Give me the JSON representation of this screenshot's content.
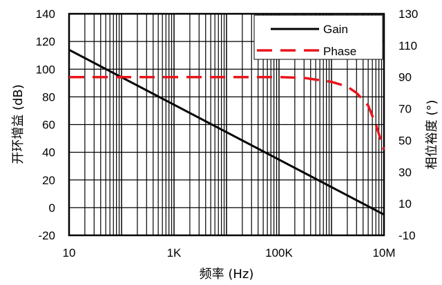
{
  "chart_data": {
    "type": "line",
    "title": "",
    "xlabel": "频率 (Hz)",
    "ylabel_left": "开环增益 (dB)",
    "ylabel_right": "相位裕度 (°)",
    "x_scale": "log",
    "xlim": [
      10,
      10000000
    ],
    "ylim_left": [
      -20,
      140
    ],
    "ylim_right": [
      -10,
      130
    ],
    "x_ticks": [
      {
        "value": 10,
        "label": "10"
      },
      {
        "value": 1000,
        "label": "1K"
      },
      {
        "value": 100000,
        "label": "100K"
      },
      {
        "value": 10000000,
        "label": "10M"
      }
    ],
    "y_ticks_left": [
      140,
      120,
      100,
      80,
      60,
      40,
      20,
      0,
      -20
    ],
    "y_ticks_right": [
      130,
      110,
      90,
      70,
      50,
      30,
      10,
      -10
    ],
    "grid": true,
    "legend_position": "top-right",
    "series": [
      {
        "name": "Gain",
        "axis": "left",
        "style": "solid",
        "color": "#000000",
        "x": [
          10,
          10000000
        ],
        "y": [
          114,
          -5
        ]
      },
      {
        "name": "Phase",
        "axis": "right",
        "style": "dashed",
        "color": "#e8141b",
        "x": [
          10,
          100000,
          300000,
          1000000,
          2000000,
          3000000,
          5000000,
          7000000,
          10000000
        ],
        "y": [
          90,
          90,
          89.5,
          87,
          84,
          80,
          72,
          60,
          44
        ]
      }
    ]
  }
}
